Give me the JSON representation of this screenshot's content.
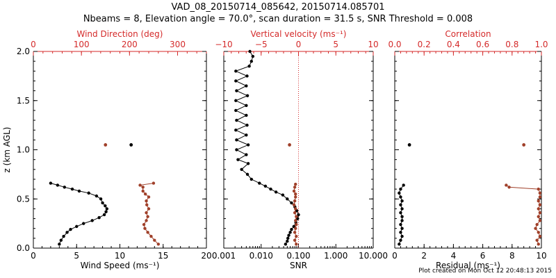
{
  "figure": {
    "title_line1": "VAD_08_20150714_085642, 20150714.085701",
    "title_line2": "Nbeams = 8, Elevation angle = 70.0°, scan duration = 31.5 s, SNR Threshold = 0.008",
    "footer": "Plot created on Mon Oct 12 20:48:13 2015",
    "colors": {
      "black": "#000000",
      "red": "#d42a2a",
      "marker_red": "#a0402a"
    }
  },
  "chart_data": [
    {
      "type": "line",
      "ylabel": "z (km AGL)",
      "ylim": [
        0,
        2
      ],
      "yticks": [
        0.0,
        0.5,
        1.0,
        1.5,
        2.0
      ],
      "ytick_labels": [
        "0.0",
        "0.5",
        "1.0",
        "1.5",
        "2.0"
      ],
      "bottom_axis": {
        "label": "Wind Speed (ms⁻¹)",
        "range": [
          0,
          20
        ],
        "ticks": [
          0,
          5,
          10,
          15,
          20
        ],
        "tick_labels": [
          "0",
          "5",
          "10",
          "15",
          "20"
        ]
      },
      "top_axis": {
        "label": "Wind Direction (deg)",
        "range": [
          0,
          360
        ],
        "ticks": [
          0,
          100,
          200,
          300
        ],
        "tick_labels": [
          "0",
          "100",
          "200",
          "300"
        ]
      },
      "series": [
        {
          "axis": "bottom",
          "color": "black",
          "points": [
            [
              3.0,
              0.04
            ],
            [
              3.2,
              0.08
            ],
            [
              3.5,
              0.12
            ],
            [
              3.9,
              0.16
            ],
            [
              4.3,
              0.19
            ],
            [
              5.0,
              0.22
            ],
            [
              5.8,
              0.25
            ],
            [
              6.8,
              0.28
            ],
            [
              7.6,
              0.31
            ],
            [
              8.2,
              0.34
            ],
            [
              8.4,
              0.37
            ],
            [
              8.5,
              0.4
            ],
            [
              8.3,
              0.43
            ],
            [
              8.0,
              0.46
            ],
            [
              7.8,
              0.5
            ],
            [
              7.3,
              0.53
            ],
            [
              6.4,
              0.56
            ],
            [
              5.3,
              0.58
            ],
            [
              4.5,
              0.6
            ],
            [
              3.6,
              0.62
            ],
            [
              2.8,
              0.64
            ],
            [
              2.0,
              0.66
            ]
          ],
          "isolated_points": [
            [
              11.3,
              1.05
            ]
          ]
        },
        {
          "axis": "top",
          "color": "marker_red",
          "points": [
            [
              260,
              0.04
            ],
            [
              252,
              0.08
            ],
            [
              245,
              0.12
            ],
            [
              238,
              0.16
            ],
            [
              232,
              0.2
            ],
            [
              230,
              0.24
            ],
            [
              235,
              0.28
            ],
            [
              238,
              0.32
            ],
            [
              235,
              0.36
            ],
            [
              240,
              0.4
            ],
            [
              236,
              0.44
            ],
            [
              235,
              0.48
            ],
            [
              240,
              0.52
            ],
            [
              233,
              0.55
            ],
            [
              228,
              0.58
            ],
            [
              228,
              0.62
            ],
            [
              222,
              0.64
            ],
            [
              250,
              0.66
            ]
          ],
          "isolated_points": [
            [
              150,
              1.05
            ]
          ]
        }
      ]
    },
    {
      "type": "line",
      "bottom_axis": {
        "label": "SNR",
        "scale": "log",
        "range": [
          0.001,
          10
        ],
        "ticks": [
          0.001,
          0.01,
          0.1,
          1,
          10
        ],
        "tick_labels": [
          "0.001",
          "0.010",
          "0.100",
          "1.000",
          "10.000"
        ]
      },
      "top_axis": {
        "label": "Vertical velocity (ms⁻¹)",
        "range": [
          -10,
          10
        ],
        "ticks": [
          -10,
          -5,
          0,
          5,
          10
        ],
        "tick_labels": [
          "−10",
          "−5",
          "0",
          "5",
          "10"
        ]
      },
      "reference_line": {
        "axis": "top",
        "value": 0
      },
      "series": [
        {
          "axis": "bottom",
          "color": "black",
          "points": [
            [
              0.045,
              0.04
            ],
            [
              0.05,
              0.07
            ],
            [
              0.052,
              0.1
            ],
            [
              0.055,
              0.13
            ],
            [
              0.06,
              0.16
            ],
            [
              0.065,
              0.19
            ],
            [
              0.075,
              0.22
            ],
            [
              0.085,
              0.26
            ],
            [
              0.095,
              0.3
            ],
            [
              0.1,
              0.34
            ],
            [
              0.09,
              0.38
            ],
            [
              0.08,
              0.42
            ],
            [
              0.065,
              0.46
            ],
            [
              0.05,
              0.5
            ],
            [
              0.038,
              0.54
            ],
            [
              0.025,
              0.57
            ],
            [
              0.018,
              0.6
            ],
            [
              0.013,
              0.63
            ],
            [
              0.009,
              0.66
            ],
            [
              0.0055,
              0.7
            ],
            [
              0.0043,
              0.75
            ],
            [
              0.003,
              0.8
            ],
            [
              0.0045,
              0.86
            ],
            [
              0.0024,
              0.9
            ],
            [
              0.004,
              0.95
            ],
            [
              0.0022,
              1.0
            ],
            [
              0.0045,
              1.05
            ],
            [
              0.0022,
              1.1
            ],
            [
              0.004,
              1.15
            ],
            [
              0.0021,
              1.2
            ],
            [
              0.0042,
              1.25
            ],
            [
              0.0022,
              1.3
            ],
            [
              0.004,
              1.35
            ],
            [
              0.0021,
              1.4
            ],
            [
              0.004,
              1.45
            ],
            [
              0.0021,
              1.5
            ],
            [
              0.0043,
              1.55
            ],
            [
              0.0022,
              1.6
            ],
            [
              0.004,
              1.65
            ],
            [
              0.0021,
              1.7
            ],
            [
              0.0042,
              1.75
            ],
            [
              0.0021,
              1.8
            ],
            [
              0.0048,
              1.85
            ],
            [
              0.0055,
              1.9
            ],
            [
              0.006,
              1.95
            ],
            [
              0.005,
              2.0
            ]
          ]
        },
        {
          "axis": "top",
          "color": "marker_red",
          "points": [
            [
              -0.3,
              0.04
            ],
            [
              -0.5,
              0.08
            ],
            [
              -0.3,
              0.12
            ],
            [
              -0.5,
              0.16
            ],
            [
              -0.4,
              0.2
            ],
            [
              -0.3,
              0.24
            ],
            [
              -0.4,
              0.28
            ],
            [
              -0.3,
              0.32
            ],
            [
              -0.5,
              0.36
            ],
            [
              -0.4,
              0.4
            ],
            [
              -0.6,
              0.44
            ],
            [
              -0.5,
              0.48
            ],
            [
              -0.4,
              0.52
            ],
            [
              -0.4,
              0.55
            ],
            [
              -0.6,
              0.58
            ],
            [
              -0.5,
              0.62
            ],
            [
              -0.4,
              0.65
            ]
          ],
          "isolated_points": [
            [
              -1.2,
              1.05
            ]
          ]
        }
      ]
    },
    {
      "type": "line",
      "bottom_axis": {
        "label": "Residual (ms⁻¹)",
        "range": [
          0,
          10
        ],
        "ticks": [
          0,
          2,
          4,
          6,
          8,
          10
        ],
        "tick_labels": [
          "0",
          "2",
          "4",
          "6",
          "8",
          "10"
        ]
      },
      "top_axis": {
        "label": "Correlation",
        "range": [
          0,
          1
        ],
        "ticks": [
          0,
          0.2,
          0.4,
          0.6,
          0.8,
          1.0
        ],
        "tick_labels": [
          "0.0",
          "0.2",
          "0.4",
          "0.6",
          "0.8",
          "1.0"
        ]
      },
      "series": [
        {
          "axis": "bottom",
          "color": "black",
          "points": [
            [
              0.3,
              0.04
            ],
            [
              0.4,
              0.08
            ],
            [
              0.5,
              0.12
            ],
            [
              0.4,
              0.16
            ],
            [
              0.5,
              0.2
            ],
            [
              0.4,
              0.24
            ],
            [
              0.5,
              0.28
            ],
            [
              0.5,
              0.32
            ],
            [
              0.4,
              0.36
            ],
            [
              0.5,
              0.4
            ],
            [
              0.4,
              0.44
            ],
            [
              0.5,
              0.48
            ],
            [
              0.4,
              0.52
            ],
            [
              0.3,
              0.56
            ],
            [
              0.4,
              0.6
            ],
            [
              0.6,
              0.64
            ]
          ],
          "isolated_points": [
            [
              1.0,
              1.05
            ]
          ]
        },
        {
          "axis": "top",
          "color": "marker_red",
          "points": [
            [
              0.98,
              0.04
            ],
            [
              0.97,
              0.08
            ],
            [
              0.99,
              0.12
            ],
            [
              0.98,
              0.16
            ],
            [
              0.96,
              0.2
            ],
            [
              0.97,
              0.24
            ],
            [
              0.99,
              0.28
            ],
            [
              0.98,
              0.32
            ],
            [
              0.99,
              0.36
            ],
            [
              0.98,
              0.4
            ],
            [
              0.99,
              0.44
            ],
            [
              0.98,
              0.48
            ],
            [
              0.99,
              0.52
            ],
            [
              0.99,
              0.56
            ],
            [
              0.98,
              0.6
            ],
            [
              0.78,
              0.62
            ],
            [
              0.76,
              0.64
            ]
          ],
          "isolated_points": [
            [
              0.88,
              1.05
            ]
          ]
        }
      ]
    }
  ]
}
